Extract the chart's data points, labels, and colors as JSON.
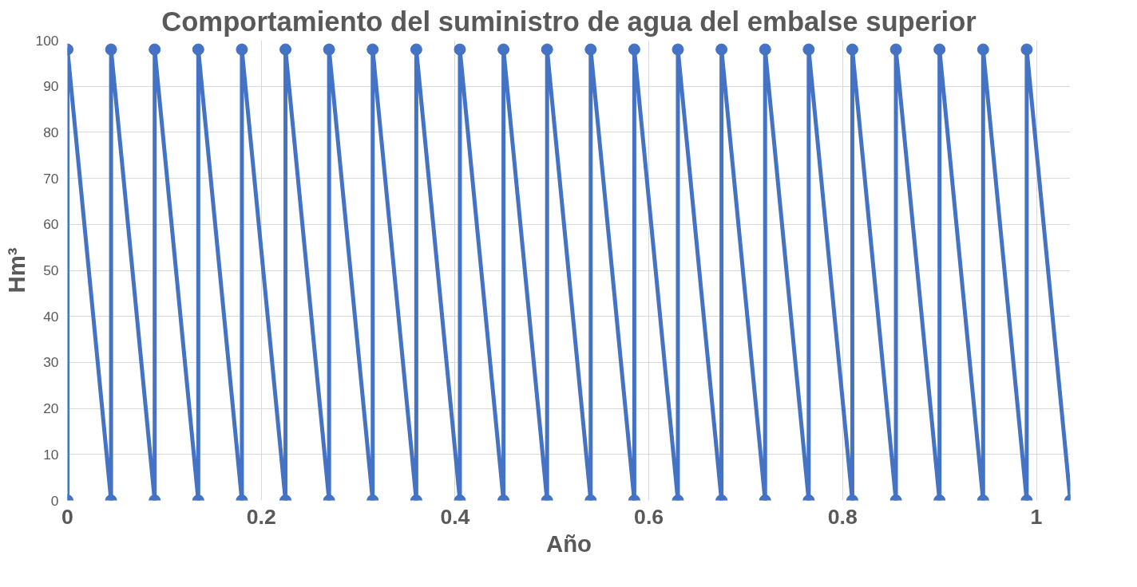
{
  "chart_data": {
    "type": "line",
    "title": "Comportamiento del suministro de agua del embalse superior",
    "xlabel": "Año",
    "ylabel": "Hm³",
    "x": [
      0,
      0,
      0.045,
      0.045,
      0.09,
      0.09,
      0.135,
      0.135,
      0.18,
      0.18,
      0.225,
      0.225,
      0.27,
      0.27,
      0.315,
      0.315,
      0.36,
      0.36,
      0.405,
      0.405,
      0.45,
      0.45,
      0.495,
      0.495,
      0.54,
      0.54,
      0.585,
      0.585,
      0.63,
      0.63,
      0.675,
      0.675,
      0.72,
      0.72,
      0.765,
      0.765,
      0.81,
      0.81,
      0.855,
      0.855,
      0.9,
      0.9,
      0.945,
      0.945,
      0.99,
      0.99,
      1.035
    ],
    "series": [
      {
        "color": "#4472c4",
        "values": [
          0,
          98,
          0,
          98,
          0,
          98,
          0,
          98,
          0,
          98,
          0,
          98,
          0,
          98,
          0,
          98,
          0,
          98,
          0,
          98,
          0,
          98,
          0,
          98,
          0,
          98,
          0,
          98,
          0,
          98,
          0,
          98,
          0,
          98,
          0,
          98,
          0,
          98,
          0,
          98,
          0,
          98,
          0,
          98,
          0,
          98,
          0
        ]
      }
    ],
    "xlim": [
      0,
      1.035
    ],
    "xticks": [
      0,
      0.2,
      0.4,
      0.6,
      0.8,
      1
    ],
    "ylim": [
      0,
      100
    ],
    "yticks": [
      0,
      10,
      20,
      30,
      40,
      50,
      60,
      70,
      80,
      90,
      100
    ],
    "grid": true,
    "marker": "circle",
    "line_style": "solid"
  }
}
